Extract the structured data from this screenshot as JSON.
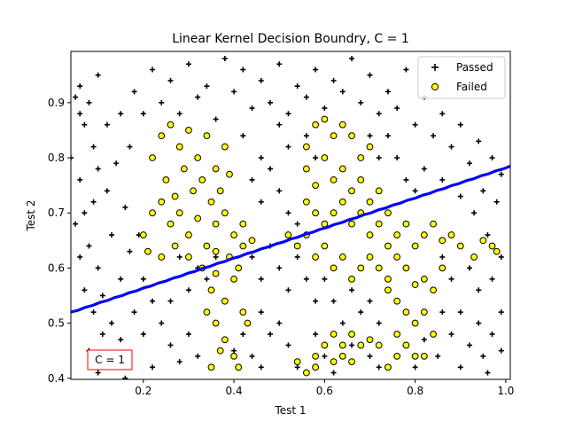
{
  "chart_data": {
    "type": "scatter",
    "title": "Linear Kernel Decision Boundry, C = 1",
    "xlabel": "Test 1",
    "ylabel": "Test 2",
    "xlim": [
      0.04,
      1.01
    ],
    "ylim": [
      0.398,
      0.993
    ],
    "xticks": [
      {
        "value": 0.2,
        "label": "0.2"
      },
      {
        "value": 0.4,
        "label": "0.4"
      },
      {
        "value": 0.6,
        "label": "0.6"
      },
      {
        "value": 0.8,
        "label": "0.8"
      },
      {
        "value": 1.0,
        "label": "1.0"
      }
    ],
    "yticks": [
      {
        "value": 0.4,
        "label": "0.4"
      },
      {
        "value": 0.5,
        "label": "0.5"
      },
      {
        "value": 0.6,
        "label": "0.6"
      },
      {
        "value": 0.7,
        "label": "0.7"
      },
      {
        "value": 0.8,
        "label": "0.8"
      },
      {
        "value": 0.9,
        "label": "0.9"
      }
    ],
    "grid": false,
    "legend_position": "top-right",
    "annotation": "C = 1",
    "annotation_position": "bottom-left",
    "colors": {
      "passed": "#000000",
      "failed_fill": "#ffff00",
      "failed_edge": "#000000",
      "boundary": "#0000ff",
      "annotation_border": "#ff0000"
    },
    "series": [
      {
        "name": "Passed",
        "marker": "plus",
        "points": [
          [
            0.05,
            0.91
          ],
          [
            0.06,
            0.88
          ],
          [
            0.07,
            0.86
          ],
          [
            0.08,
            0.9
          ],
          [
            0.06,
            0.76
          ],
          [
            0.09,
            0.82
          ],
          [
            0.1,
            0.78
          ],
          [
            0.07,
            0.7
          ],
          [
            0.05,
            0.68
          ],
          [
            0.08,
            0.64
          ],
          [
            0.1,
            0.6
          ],
          [
            0.07,
            0.56
          ],
          [
            0.09,
            0.52
          ],
          [
            0.11,
            0.48
          ],
          [
            0.08,
            0.45
          ],
          [
            0.12,
            0.44
          ],
          [
            0.14,
            0.42
          ],
          [
            0.1,
            0.41
          ],
          [
            0.15,
            0.47
          ],
          [
            0.13,
            0.5
          ],
          [
            0.16,
            0.4
          ],
          [
            0.12,
            0.86
          ],
          [
            0.15,
            0.88
          ],
          [
            0.18,
            0.92
          ],
          [
            0.2,
            0.88
          ],
          [
            0.17,
            0.82
          ],
          [
            0.14,
            0.79
          ],
          [
            0.12,
            0.74
          ],
          [
            0.16,
            0.71
          ],
          [
            0.13,
            0.66
          ],
          [
            0.17,
            0.63
          ],
          [
            0.19,
            0.66
          ],
          [
            0.15,
            0.58
          ],
          [
            0.11,
            0.55
          ],
          [
            0.06,
            0.62
          ],
          [
            0.09,
            0.72
          ],
          [
            0.04,
            0.8
          ],
          [
            0.06,
            0.93
          ],
          [
            0.1,
            0.95
          ],
          [
            0.22,
            0.96
          ],
          [
            0.26,
            0.94
          ],
          [
            0.3,
            0.97
          ],
          [
            0.34,
            0.93
          ],
          [
            0.38,
            0.98
          ],
          [
            0.42,
            0.96
          ],
          [
            0.46,
            0.94
          ],
          [
            0.5,
            0.97
          ],
          [
            0.54,
            0.93
          ],
          [
            0.58,
            0.96
          ],
          [
            0.62,
            0.94
          ],
          [
            0.66,
            0.98
          ],
          [
            0.7,
            0.95
          ],
          [
            0.74,
            0.92
          ],
          [
            0.78,
            0.96
          ],
          [
            0.82,
            0.91
          ],
          [
            0.86,
            0.88
          ],
          [
            0.9,
            0.86
          ],
          [
            0.94,
            0.83
          ],
          [
            0.97,
            0.8
          ],
          [
            0.99,
            0.77
          ],
          [
            0.24,
            0.9
          ],
          [
            0.28,
            0.88
          ],
          [
            0.32,
            0.91
          ],
          [
            0.36,
            0.87
          ],
          [
            0.4,
            0.92
          ],
          [
            0.44,
            0.89
          ],
          [
            0.48,
            0.9
          ],
          [
            0.52,
            0.88
          ],
          [
            0.56,
            0.91
          ],
          [
            0.6,
            0.89
          ],
          [
            0.64,
            0.92
          ],
          [
            0.68,
            0.9
          ],
          [
            0.72,
            0.88
          ],
          [
            0.76,
            0.89
          ],
          [
            0.8,
            0.86
          ],
          [
            0.84,
            0.84
          ],
          [
            0.88,
            0.82
          ],
          [
            0.92,
            0.79
          ],
          [
            0.95,
            0.74
          ],
          [
            0.98,
            0.72
          ],
          [
            0.42,
            0.84
          ],
          [
            0.46,
            0.8
          ],
          [
            0.44,
            0.76
          ],
          [
            0.48,
            0.78
          ],
          [
            0.5,
            0.74
          ],
          [
            0.46,
            0.72
          ],
          [
            0.52,
            0.7
          ],
          [
            0.54,
            0.68
          ],
          [
            0.56,
            0.84
          ],
          [
            0.58,
            0.8
          ],
          [
            0.52,
            0.82
          ],
          [
            0.5,
            0.86
          ],
          [
            0.7,
            0.84
          ],
          [
            0.72,
            0.8
          ],
          [
            0.74,
            0.84
          ],
          [
            0.76,
            0.8
          ],
          [
            0.78,
            0.76
          ],
          [
            0.8,
            0.74
          ],
          [
            0.82,
            0.78
          ],
          [
            0.86,
            0.76
          ],
          [
            0.9,
            0.73
          ],
          [
            0.93,
            0.7
          ],
          [
            0.96,
            0.66
          ],
          [
            0.99,
            0.62
          ],
          [
            0.97,
            0.58
          ],
          [
            0.94,
            0.56
          ],
          [
            0.92,
            0.6
          ],
          [
            0.88,
            0.58
          ],
          [
            0.86,
            0.62
          ],
          [
            0.9,
            0.52
          ],
          [
            0.94,
            0.5
          ],
          [
            0.97,
            0.48
          ],
          [
            0.99,
            0.45
          ],
          [
            0.95,
            0.44
          ],
          [
            0.92,
            0.46
          ],
          [
            0.88,
            0.48
          ],
          [
            0.85,
            0.44
          ],
          [
            0.82,
            0.47
          ],
          [
            0.8,
            0.42
          ],
          [
            0.9,
            0.42
          ],
          [
            0.96,
            0.41
          ],
          [
            0.99,
            0.52
          ],
          [
            0.84,
            0.56
          ],
          [
            0.86,
            0.52
          ],
          [
            0.7,
            0.54
          ],
          [
            0.72,
            0.5
          ],
          [
            0.68,
            0.52
          ],
          [
            0.66,
            0.56
          ],
          [
            0.64,
            0.5
          ],
          [
            0.62,
            0.54
          ],
          [
            0.6,
            0.58
          ],
          [
            0.58,
            0.54
          ],
          [
            0.56,
            0.58
          ],
          [
            0.54,
            0.62
          ],
          [
            0.52,
            0.56
          ],
          [
            0.5,
            0.6
          ],
          [
            0.48,
            0.64
          ],
          [
            0.46,
            0.58
          ],
          [
            0.44,
            0.62
          ],
          [
            0.46,
            0.52
          ],
          [
            0.48,
            0.48
          ],
          [
            0.5,
            0.5
          ],
          [
            0.52,
            0.46
          ],
          [
            0.54,
            0.42
          ],
          [
            0.58,
            0.48
          ],
          [
            0.6,
            0.44
          ],
          [
            0.62,
            0.41
          ],
          [
            0.66,
            0.46
          ],
          [
            0.7,
            0.44
          ],
          [
            0.72,
            0.42
          ],
          [
            0.44,
            0.44
          ],
          [
            0.42,
            0.48
          ],
          [
            0.4,
            0.45
          ],
          [
            0.46,
            0.42
          ],
          [
            0.2,
            0.58
          ],
          [
            0.22,
            0.54
          ],
          [
            0.24,
            0.5
          ],
          [
            0.26,
            0.46
          ],
          [
            0.28,
            0.43
          ],
          [
            0.3,
            0.48
          ],
          [
            0.32,
            0.44
          ],
          [
            0.2,
            0.48
          ],
          [
            0.18,
            0.52
          ],
          [
            0.22,
            0.42
          ],
          [
            0.26,
            0.54
          ],
          [
            0.3,
            0.56
          ],
          [
            0.34,
            0.58
          ],
          [
            0.36,
            0.62
          ],
          [
            0.32,
            0.6
          ],
          [
            0.28,
            0.62
          ]
        ]
      },
      {
        "name": "Failed",
        "marker": "circle",
        "points": [
          [
            0.22,
            0.8
          ],
          [
            0.24,
            0.84
          ],
          [
            0.26,
            0.86
          ],
          [
            0.28,
            0.82
          ],
          [
            0.3,
            0.85
          ],
          [
            0.32,
            0.8
          ],
          [
            0.34,
            0.84
          ],
          [
            0.36,
            0.78
          ],
          [
            0.38,
            0.82
          ],
          [
            0.25,
            0.76
          ],
          [
            0.27,
            0.73
          ],
          [
            0.29,
            0.78
          ],
          [
            0.31,
            0.74
          ],
          [
            0.33,
            0.76
          ],
          [
            0.35,
            0.72
          ],
          [
            0.37,
            0.74
          ],
          [
            0.39,
            0.77
          ],
          [
            0.22,
            0.7
          ],
          [
            0.24,
            0.72
          ],
          [
            0.26,
            0.68
          ],
          [
            0.28,
            0.7
          ],
          [
            0.3,
            0.66
          ],
          [
            0.32,
            0.69
          ],
          [
            0.34,
            0.64
          ],
          [
            0.36,
            0.68
          ],
          [
            0.38,
            0.7
          ],
          [
            0.4,
            0.66
          ],
          [
            0.42,
            0.68
          ],
          [
            0.2,
            0.66
          ],
          [
            0.21,
            0.63
          ],
          [
            0.24,
            0.62
          ],
          [
            0.27,
            0.64
          ],
          [
            0.3,
            0.62
          ],
          [
            0.33,
            0.6
          ],
          [
            0.36,
            0.63
          ],
          [
            0.39,
            0.62
          ],
          [
            0.42,
            0.64
          ],
          [
            0.44,
            0.65
          ],
          [
            0.41,
            0.6
          ],
          [
            0.35,
            0.56
          ],
          [
            0.38,
            0.54
          ],
          [
            0.4,
            0.58
          ],
          [
            0.42,
            0.52
          ],
          [
            0.36,
            0.5
          ],
          [
            0.38,
            0.47
          ],
          [
            0.4,
            0.44
          ],
          [
            0.35,
            0.42
          ],
          [
            0.37,
            0.45
          ],
          [
            0.41,
            0.42
          ],
          [
            0.43,
            0.5
          ],
          [
            0.36,
            0.59
          ],
          [
            0.34,
            0.52
          ],
          [
            0.56,
            0.82
          ],
          [
            0.58,
            0.86
          ],
          [
            0.6,
            0.87
          ],
          [
            0.62,
            0.84
          ],
          [
            0.64,
            0.86
          ],
          [
            0.66,
            0.84
          ],
          [
            0.68,
            0.8
          ],
          [
            0.7,
            0.82
          ],
          [
            0.56,
            0.78
          ],
          [
            0.58,
            0.75
          ],
          [
            0.6,
            0.8
          ],
          [
            0.62,
            0.76
          ],
          [
            0.64,
            0.78
          ],
          [
            0.66,
            0.74
          ],
          [
            0.68,
            0.76
          ],
          [
            0.7,
            0.72
          ],
          [
            0.72,
            0.74
          ],
          [
            0.74,
            0.7
          ],
          [
            0.56,
            0.72
          ],
          [
            0.58,
            0.7
          ],
          [
            0.6,
            0.68
          ],
          [
            0.62,
            0.7
          ],
          [
            0.64,
            0.72
          ],
          [
            0.66,
            0.68
          ],
          [
            0.68,
            0.7
          ],
          [
            0.7,
            0.66
          ],
          [
            0.72,
            0.68
          ],
          [
            0.74,
            0.64
          ],
          [
            0.76,
            0.66
          ],
          [
            0.78,
            0.68
          ],
          [
            0.8,
            0.64
          ],
          [
            0.82,
            0.66
          ],
          [
            0.84,
            0.68
          ],
          [
            0.86,
            0.65
          ],
          [
            0.88,
            0.66
          ],
          [
            0.9,
            0.64
          ],
          [
            0.93,
            0.62
          ],
          [
            0.95,
            0.65
          ],
          [
            0.97,
            0.64
          ],
          [
            0.98,
            0.63
          ],
          [
            0.52,
            0.66
          ],
          [
            0.54,
            0.64
          ],
          [
            0.56,
            0.66
          ],
          [
            0.58,
            0.62
          ],
          [
            0.6,
            0.64
          ],
          [
            0.62,
            0.6
          ],
          [
            0.64,
            0.62
          ],
          [
            0.66,
            0.58
          ],
          [
            0.68,
            0.6
          ],
          [
            0.7,
            0.62
          ],
          [
            0.72,
            0.6
          ],
          [
            0.74,
            0.58
          ],
          [
            0.76,
            0.62
          ],
          [
            0.78,
            0.6
          ],
          [
            0.8,
            0.57
          ],
          [
            0.82,
            0.58
          ],
          [
            0.84,
            0.56
          ],
          [
            0.86,
            0.6
          ],
          [
            0.74,
            0.56
          ],
          [
            0.76,
            0.54
          ],
          [
            0.78,
            0.52
          ],
          [
            0.8,
            0.5
          ],
          [
            0.76,
            0.48
          ],
          [
            0.78,
            0.46
          ],
          [
            0.8,
            0.44
          ],
          [
            0.76,
            0.44
          ],
          [
            0.74,
            0.42
          ],
          [
            0.82,
            0.52
          ],
          [
            0.84,
            0.48
          ],
          [
            0.82,
            0.44
          ],
          [
            0.58,
            0.44
          ],
          [
            0.6,
            0.46
          ],
          [
            0.62,
            0.48
          ],
          [
            0.64,
            0.46
          ],
          [
            0.66,
            0.48
          ],
          [
            0.68,
            0.46
          ],
          [
            0.7,
            0.47
          ],
          [
            0.56,
            0.41
          ],
          [
            0.58,
            0.42
          ],
          [
            0.54,
            0.43
          ],
          [
            0.64,
            0.44
          ],
          [
            0.66,
            0.43
          ],
          [
            0.72,
            0.46
          ],
          [
            0.62,
            0.43
          ]
        ]
      }
    ],
    "boundary": {
      "name": "",
      "points": [
        [
          0.04,
          0.52
        ],
        [
          1.01,
          0.785
        ]
      ]
    }
  }
}
